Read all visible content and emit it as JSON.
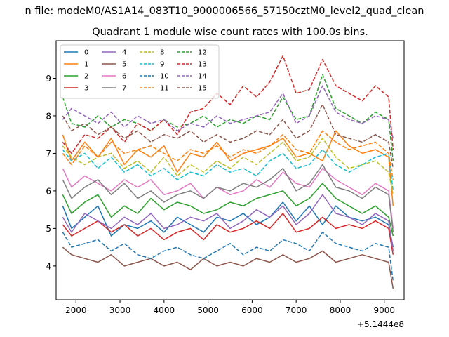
{
  "suptitle": "n file: modeM0/AS1A14_083T10_9000006566_57150cztM0_level2_quad_clean",
  "chart_data": {
    "type": "line",
    "title": "Quadrant 1 module wise count rates with 100.0s bins.",
    "xlabel": "",
    "ylabel": "",
    "x_offset_label": "+5.1444e8",
    "xlim": [
      1550,
      9450
    ],
    "ylim": [
      3.1,
      10.0
    ],
    "x_ticks": [
      2000,
      3000,
      4000,
      5000,
      6000,
      7000,
      8000,
      9000
    ],
    "x_tick_labels": [
      "2000",
      "3000",
      "4000",
      "5000",
      "6000",
      "7000",
      "8000",
      "9000"
    ],
    "y_ticks": [
      4,
      5,
      6,
      7,
      8,
      9
    ],
    "y_tick_labels": [
      "4",
      "5",
      "6",
      "7",
      "8",
      "9"
    ],
    "x": [
      1700,
      1900,
      2200,
      2500,
      2800,
      3100,
      3400,
      3700,
      4000,
      4300,
      4600,
      4900,
      5200,
      5500,
      5800,
      6100,
      6400,
      6700,
      7000,
      7300,
      7600,
      7900,
      8200,
      8500,
      8800,
      9100,
      9200
    ],
    "legend_location": "upper left",
    "series": [
      {
        "name": "0",
        "color": "#1f77b4",
        "dash": "solid",
        "values": [
          5.6,
          5.0,
          5.3,
          5.6,
          4.8,
          5.1,
          5.0,
          5.2,
          4.9,
          5.3,
          5.1,
          4.9,
          5.3,
          5.2,
          5.4,
          5.1,
          5.3,
          5.7,
          5.2,
          5.6,
          5.1,
          5.6,
          5.3,
          5.2,
          5.3,
          5.1,
          4.5
        ]
      },
      {
        "name": "1",
        "color": "#ff7f0e",
        "dash": "solid",
        "values": [
          7.5,
          6.8,
          7.3,
          6.9,
          7.4,
          6.7,
          7.1,
          6.9,
          7.2,
          6.5,
          7.0,
          6.9,
          7.3,
          6.8,
          7.0,
          7.1,
          7.2,
          7.4,
          6.9,
          7.0,
          6.8,
          7.6,
          7.2,
          7.0,
          7.1,
          6.9,
          5.6
        ]
      },
      {
        "name": "2",
        "color": "#2ca02c",
        "dash": "solid",
        "values": [
          5.9,
          5.4,
          5.7,
          5.9,
          5.3,
          5.6,
          5.4,
          5.8,
          5.5,
          5.7,
          5.6,
          5.4,
          5.5,
          5.7,
          5.6,
          5.8,
          5.9,
          6.0,
          5.6,
          5.8,
          6.2,
          5.8,
          5.6,
          5.4,
          5.6,
          5.3,
          4.8
        ]
      },
      {
        "name": "3",
        "color": "#d62728",
        "dash": "solid",
        "values": [
          5.1,
          4.8,
          5.0,
          5.2,
          4.9,
          5.1,
          4.8,
          5.0,
          4.7,
          4.9,
          5.0,
          4.7,
          5.1,
          4.9,
          5.0,
          5.2,
          5.0,
          5.4,
          4.9,
          5.0,
          5.3,
          5.0,
          5.1,
          5.0,
          5.2,
          5.0,
          4.3
        ]
      },
      {
        "name": "4",
        "color": "#9467bd",
        "dash": "solid",
        "values": [
          5.3,
          4.9,
          5.4,
          5.2,
          5.0,
          5.3,
          5.1,
          5.4,
          5.0,
          5.1,
          5.3,
          5.2,
          5.4,
          5.0,
          5.2,
          5.5,
          5.3,
          5.6,
          5.1,
          5.4,
          5.9,
          5.4,
          5.3,
          5.1,
          5.4,
          5.2,
          4.4
        ]
      },
      {
        "name": "5",
        "color": "#8c564b",
        "dash": "solid",
        "values": [
          4.5,
          4.3,
          4.2,
          4.1,
          4.3,
          4.0,
          4.1,
          4.2,
          4.0,
          4.1,
          3.9,
          4.2,
          4.0,
          4.1,
          4.0,
          4.2,
          4.1,
          4.3,
          4.1,
          4.2,
          4.4,
          4.1,
          4.2,
          4.3,
          4.2,
          4.1,
          3.4
        ]
      },
      {
        "name": "6",
        "color": "#e377c2",
        "dash": "solid",
        "values": [
          6.6,
          6.1,
          6.4,
          6.2,
          6.0,
          6.3,
          6.1,
          6.3,
          5.9,
          6.0,
          6.2,
          5.8,
          6.1,
          5.9,
          6.0,
          6.3,
          6.1,
          6.5,
          6.2,
          6.1,
          6.6,
          6.3,
          6.1,
          5.9,
          6.2,
          6.0,
          5.0
        ]
      },
      {
        "name": "7",
        "color": "#7f7f7f",
        "dash": "solid",
        "values": [
          6.3,
          5.8,
          6.1,
          6.3,
          5.9,
          6.2,
          5.8,
          6.0,
          5.7,
          5.9,
          6.0,
          5.8,
          6.1,
          6.0,
          6.2,
          6.1,
          6.3,
          6.6,
          6.0,
          6.2,
          6.7,
          6.1,
          6.0,
          5.8,
          6.1,
          5.9,
          4.9
        ]
      },
      {
        "name": "8",
        "color": "#bcbd22",
        "dash": "dashed",
        "values": [
          7.2,
          6.9,
          6.7,
          6.9,
          7.0,
          6.6,
          6.8,
          6.5,
          6.9,
          6.4,
          6.7,
          6.5,
          6.8,
          6.6,
          6.9,
          6.7,
          7.0,
          7.3,
          6.8,
          6.9,
          7.4,
          6.9,
          6.6,
          6.7,
          6.8,
          6.5,
          5.9
        ]
      },
      {
        "name": "9",
        "color": "#17becf",
        "dash": "dashed",
        "values": [
          7.1,
          6.8,
          7.0,
          6.6,
          6.9,
          6.5,
          6.7,
          6.4,
          6.6,
          6.3,
          6.5,
          6.4,
          6.7,
          6.5,
          6.6,
          6.4,
          6.8,
          7.0,
          6.6,
          6.7,
          7.1,
          6.7,
          6.5,
          6.7,
          6.9,
          7.0,
          6.0
        ]
      },
      {
        "name": "10",
        "color": "#1f77b4",
        "dash": "dashed",
        "values": [
          4.9,
          4.5,
          4.6,
          4.7,
          4.4,
          4.6,
          4.3,
          4.2,
          4.4,
          4.5,
          4.3,
          4.2,
          4.4,
          4.6,
          4.3,
          4.5,
          4.4,
          4.7,
          4.6,
          4.4,
          4.9,
          4.6,
          4.5,
          4.4,
          4.6,
          4.5,
          3.6
        ]
      },
      {
        "name": "11",
        "color": "#ff7f0e",
        "dash": "dashed",
        "values": [
          7.0,
          6.7,
          7.2,
          6.9,
          7.3,
          7.0,
          7.1,
          7.2,
          7.0,
          6.8,
          7.1,
          7.0,
          7.2,
          6.9,
          7.1,
          7.0,
          7.2,
          7.5,
          7.1,
          7.0,
          7.6,
          7.3,
          7.1,
          7.2,
          7.3,
          7.0,
          6.3
        ]
      },
      {
        "name": "12",
        "color": "#2ca02c",
        "dash": "dashed",
        "values": [
          8.5,
          7.8,
          7.7,
          8.0,
          7.7,
          7.9,
          7.8,
          7.6,
          7.9,
          7.7,
          7.8,
          8.0,
          7.7,
          7.9,
          7.8,
          8.0,
          7.9,
          8.5,
          7.9,
          8.0,
          9.1,
          8.2,
          8.0,
          7.8,
          8.1,
          7.9,
          6.8
        ]
      },
      {
        "name": "13",
        "color": "#d62728",
        "dash": "dashed",
        "values": [
          7.3,
          7.0,
          7.5,
          7.4,
          7.7,
          7.3,
          7.8,
          7.6,
          7.9,
          7.5,
          8.1,
          8.2,
          8.6,
          8.3,
          8.8,
          8.5,
          8.9,
          9.6,
          8.6,
          8.7,
          9.5,
          8.8,
          8.6,
          8.4,
          8.8,
          8.5,
          7.1
        ]
      },
      {
        "name": "14",
        "color": "#9467bd",
        "dash": "dashed",
        "values": [
          7.9,
          8.2,
          8.0,
          7.8,
          8.1,
          7.7,
          8.0,
          7.8,
          7.9,
          7.6,
          7.8,
          7.7,
          8.0,
          7.8,
          7.9,
          8.0,
          8.1,
          8.6,
          7.8,
          8.0,
          8.8,
          8.1,
          7.9,
          7.8,
          8.0,
          7.9,
          7.4
        ]
      },
      {
        "name": "15",
        "color": "#8c564b",
        "dash": "dashed",
        "values": [
          8.0,
          7.6,
          7.8,
          7.5,
          7.7,
          7.4,
          7.6,
          7.3,
          7.5,
          7.4,
          7.6,
          7.3,
          7.5,
          7.3,
          7.4,
          7.6,
          7.5,
          7.9,
          7.4,
          7.6,
          8.3,
          7.5,
          7.4,
          7.3,
          7.5,
          7.3,
          6.6
        ]
      }
    ]
  }
}
